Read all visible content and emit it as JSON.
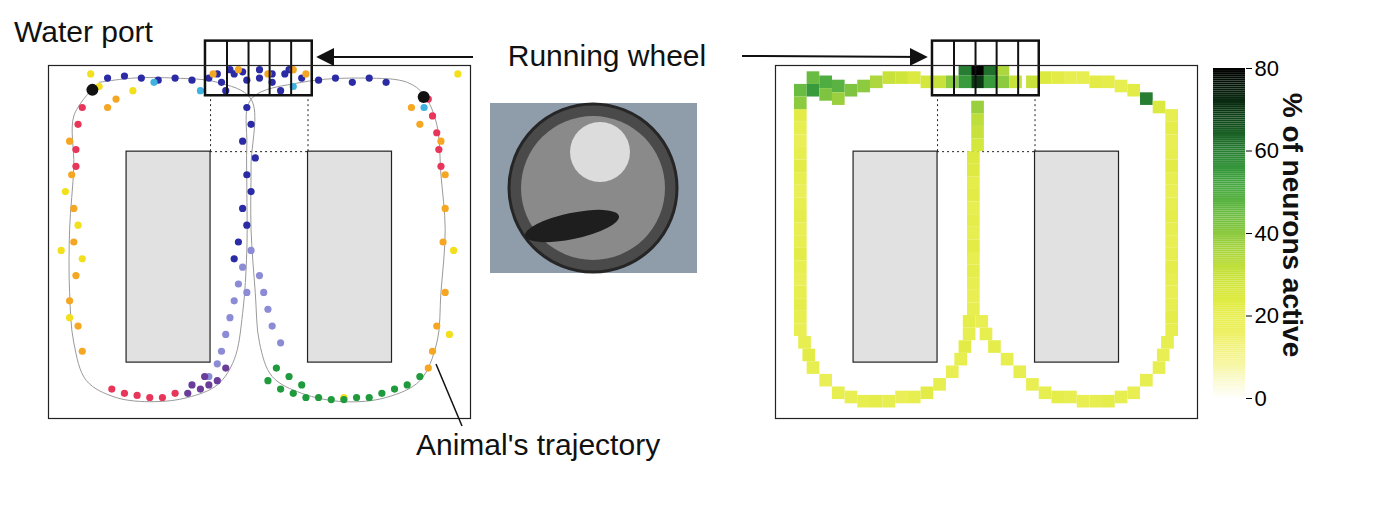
{
  "chart_data": [
    {
      "type": "scatter",
      "tick_labels": false,
      "xlim": [
        0,
        100
      ],
      "ylim": [
        0,
        84
      ],
      "annotations": [
        "Water port",
        "Running wheel",
        "Animal's trajectory"
      ],
      "series": [
        {
          "type": "line",
          "color": "#9a9a9a",
          "x": [
            10,
            6,
            6,
            5,
            5,
            6,
            9,
            16,
            25,
            33,
            40,
            44,
            46,
            47,
            47,
            47,
            48,
            60,
            75,
            85,
            89,
            92,
            93,
            94,
            93,
            92,
            88,
            80,
            70,
            60,
            53,
            50,
            49,
            48,
            48,
            48,
            40,
            30,
            20,
            12
          ],
          "y": [
            78,
            72,
            60,
            45,
            30,
            18,
            9,
            5,
            4,
            5,
            8,
            14,
            25,
            40,
            55,
            65,
            76,
            80,
            81,
            80,
            77,
            70,
            58,
            45,
            30,
            18,
            9,
            5,
            4,
            6,
            10,
            18,
            30,
            45,
            60,
            76,
            80,
            81,
            81,
            80
          ]
        },
        {
          "type": "scatter",
          "marker": "circle",
          "color": "#2b2ba6",
          "x": [
            14,
            18,
            22,
            26,
            30,
            34,
            38,
            41,
            44,
            47,
            50,
            53,
            56,
            60,
            64,
            68,
            72,
            76,
            80,
            47,
            48,
            46,
            49,
            47,
            48,
            46,
            47,
            45,
            44,
            40,
            43,
            46,
            50,
            53,
            57,
            42,
            55
          ],
          "y": [
            81,
            81.5,
            81,
            80.5,
            81,
            80.5,
            81,
            80,
            82,
            80.5,
            81,
            80,
            82,
            81,
            80.5,
            81,
            80,
            81,
            80,
            74,
            70,
            66,
            62,
            58,
            54,
            50,
            46,
            42,
            38,
            82,
            83,
            82.5,
            83,
            82,
            83,
            78,
            78
          ]
        },
        {
          "type": "scatter",
          "marker": "circle",
          "color": "#8c8cd6",
          "x": [
            46,
            45,
            44,
            43,
            42,
            41,
            40,
            38,
            50,
            51,
            52,
            53,
            55,
            48,
            47
          ],
          "y": [
            36,
            32,
            28,
            24,
            20,
            16,
            13,
            10,
            34,
            30,
            26,
            22,
            18,
            40,
            30
          ]
        },
        {
          "type": "scatter",
          "marker": "circle",
          "color": "#f5a623",
          "x": [
            5,
            5.5,
            6,
            6,
            6.5,
            5,
            7,
            8,
            93,
            94,
            94,
            93.5,
            94,
            92,
            91,
            90,
            39,
            45,
            52,
            58,
            61,
            86,
            88,
            16,
            14
          ],
          "y": [
            66,
            58,
            50,
            42,
            34,
            28,
            22,
            16,
            66,
            58,
            50,
            42,
            30,
            22,
            16,
            12,
            82,
            83,
            82,
            83,
            82,
            74,
            70,
            76,
            74
          ]
        },
        {
          "type": "scatter",
          "marker": "circle",
          "color": "#e8365a",
          "x": [
            8,
            7,
            6.5,
            6.5,
            90,
            91,
            92,
            92.5,
            93,
            18,
            21,
            24,
            27,
            30,
            15
          ],
          "y": [
            74,
            70,
            64,
            60,
            76,
            72,
            68,
            64,
            60,
            6,
            5.5,
            5,
            5,
            6,
            7
          ]
        },
        {
          "type": "scatter",
          "marker": "circle",
          "color": "#f2e01c",
          "x": [
            4,
            7,
            8,
            5,
            3,
            10,
            12,
            20,
            96,
            95,
            97,
            70
          ],
          "y": [
            54,
            46,
            38,
            24,
            40,
            82,
            79,
            78,
            40,
            20,
            82,
            5
          ]
        },
        {
          "type": "scatter",
          "marker": "circle",
          "color": "#1f9a3c",
          "x": [
            52,
            55,
            58,
            61,
            64,
            67,
            70,
            73,
            76,
            79,
            82,
            85,
            54,
            57,
            60,
            88
          ],
          "y": [
            9,
            7,
            6,
            5,
            5,
            4.5,
            4.5,
            5,
            5,
            6,
            7,
            8,
            12,
            10,
            8,
            10
          ]
        },
        {
          "type": "scatter",
          "marker": "circle",
          "color": "#6a3d9a",
          "x": [
            33,
            36,
            38,
            40,
            42,
            34,
            37
          ],
          "y": [
            6,
            7,
            8,
            9,
            12,
            8,
            10
          ]
        },
        {
          "type": "scatter",
          "marker": "circle",
          "color": "#3fb2e0",
          "x": [
            36,
            58,
            89,
            25
          ],
          "y": [
            78,
            79,
            74,
            80
          ]
        }
      ]
    },
    {
      "type": "heatmap",
      "tick_labels": false,
      "xlim": [
        0,
        100
      ],
      "ylim": [
        0,
        84
      ],
      "cell_size": 3,
      "cells": [
        [
          6,
          72,
          22
        ],
        [
          6,
          69,
          20
        ],
        [
          6,
          66,
          18
        ],
        [
          6,
          63,
          20
        ],
        [
          6,
          60,
          22
        ],
        [
          6,
          57,
          20
        ],
        [
          6,
          54,
          18
        ],
        [
          6,
          51,
          20
        ],
        [
          6,
          48,
          21
        ],
        [
          6,
          45,
          19
        ],
        [
          6,
          42,
          20
        ],
        [
          6,
          39,
          22
        ],
        [
          6,
          36,
          20
        ],
        [
          6,
          33,
          18
        ],
        [
          6,
          30,
          20
        ],
        [
          6,
          27,
          21
        ],
        [
          6,
          24,
          20
        ],
        [
          6,
          21,
          19
        ],
        [
          7,
          18,
          20
        ],
        [
          8,
          15,
          22
        ],
        [
          9,
          12,
          20
        ],
        [
          12,
          9,
          18
        ],
        [
          15,
          6,
          20
        ],
        [
          18,
          5,
          19
        ],
        [
          21,
          4,
          20
        ],
        [
          24,
          4,
          21
        ],
        [
          27,
          4,
          20
        ],
        [
          30,
          5,
          18
        ],
        [
          33,
          5,
          20
        ],
        [
          36,
          6,
          22
        ],
        [
          39,
          8,
          20
        ],
        [
          42,
          11,
          19
        ],
        [
          44,
          14,
          20
        ],
        [
          45,
          17,
          22
        ],
        [
          46,
          20,
          20
        ],
        [
          46,
          23,
          21
        ],
        [
          47,
          26,
          20
        ],
        [
          47,
          29,
          19
        ],
        [
          47,
          32,
          20
        ],
        [
          47,
          35,
          21
        ],
        [
          47,
          38,
          20
        ],
        [
          47,
          41,
          22
        ],
        [
          47,
          44,
          20
        ],
        [
          47,
          47,
          21
        ],
        [
          47,
          50,
          20
        ],
        [
          47,
          53,
          22
        ],
        [
          47,
          56,
          21
        ],
        [
          47,
          59,
          24
        ],
        [
          47,
          62,
          25
        ],
        [
          48,
          65,
          27
        ],
        [
          48,
          68,
          30
        ],
        [
          48,
          71,
          32
        ],
        [
          48,
          74,
          38
        ],
        [
          94,
          72,
          20
        ],
        [
          94,
          69,
          21
        ],
        [
          94,
          66,
          19
        ],
        [
          94,
          63,
          20
        ],
        [
          94,
          60,
          22
        ],
        [
          94,
          57,
          20
        ],
        [
          94,
          54,
          19
        ],
        [
          94,
          51,
          20
        ],
        [
          94,
          48,
          21
        ],
        [
          94,
          45,
          20
        ],
        [
          94,
          42,
          19
        ],
        [
          94,
          39,
          20
        ],
        [
          94,
          36,
          21
        ],
        [
          94,
          33,
          20
        ],
        [
          94,
          30,
          19
        ],
        [
          94,
          27,
          20
        ],
        [
          94,
          24,
          21
        ],
        [
          94,
          21,
          20
        ],
        [
          93,
          18,
          20
        ],
        [
          92,
          15,
          19
        ],
        [
          91,
          12,
          20
        ],
        [
          88,
          9,
          20
        ],
        [
          85,
          6,
          19
        ],
        [
          82,
          5,
          20
        ],
        [
          79,
          4,
          21
        ],
        [
          76,
          4,
          20
        ],
        [
          73,
          4,
          19
        ],
        [
          70,
          5,
          20
        ],
        [
          67,
          5,
          21
        ],
        [
          64,
          6,
          20
        ],
        [
          61,
          8,
          19
        ],
        [
          58,
          11,
          20
        ],
        [
          55,
          14,
          20
        ],
        [
          52,
          17,
          21
        ],
        [
          50,
          20,
          20
        ],
        [
          49,
          23,
          19
        ],
        [
          9,
          81,
          45
        ],
        [
          12,
          80,
          50
        ],
        [
          15,
          79,
          48
        ],
        [
          18,
          78,
          42
        ],
        [
          21,
          79,
          40
        ],
        [
          24,
          80,
          35
        ],
        [
          27,
          81,
          30
        ],
        [
          30,
          81,
          28
        ],
        [
          33,
          81,
          25
        ],
        [
          36,
          80,
          27
        ],
        [
          39,
          80,
          30
        ],
        [
          61,
          80,
          30
        ],
        [
          64,
          81,
          25
        ],
        [
          67,
          81,
          22
        ],
        [
          70,
          81,
          20
        ],
        [
          73,
          81,
          20
        ],
        [
          76,
          80,
          22
        ],
        [
          79,
          80,
          21
        ],
        [
          82,
          79,
          20
        ],
        [
          85,
          78,
          22
        ],
        [
          88,
          76,
          60
        ],
        [
          91,
          74,
          25
        ],
        [
          42,
          80,
          40
        ],
        [
          45,
          80,
          55
        ],
        [
          48,
          80,
          70
        ],
        [
          51,
          80,
          55
        ],
        [
          54,
          80,
          40
        ],
        [
          57,
          80,
          30
        ],
        [
          45,
          83,
          60
        ],
        [
          48,
          83,
          80
        ],
        [
          51,
          83,
          62
        ],
        [
          54,
          83,
          35
        ],
        [
          6,
          78,
          45
        ],
        [
          6,
          75,
          40
        ],
        [
          9,
          78,
          55
        ],
        [
          12,
          77,
          42
        ],
        [
          15,
          76,
          38
        ]
      ],
      "colorbar": {
        "label": "% of neurons active",
        "range": [
          0,
          80
        ],
        "ticks": [
          0,
          20,
          40,
          60,
          80
        ]
      }
    }
  ]
}
